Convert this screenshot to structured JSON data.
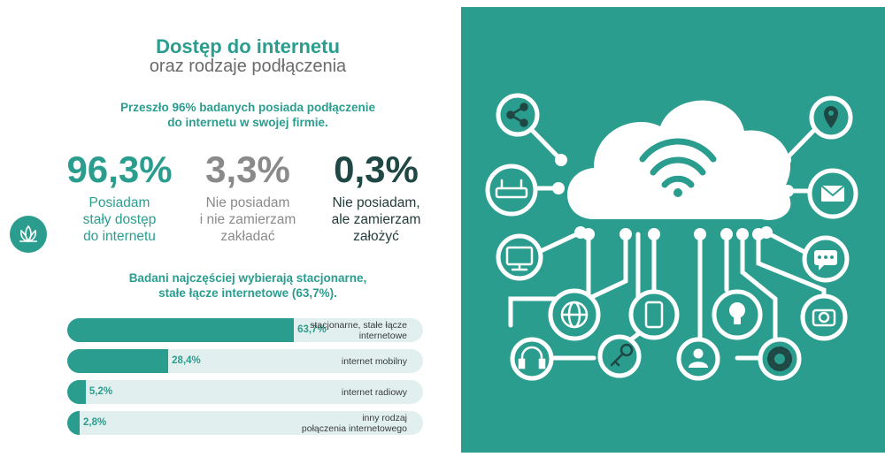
{
  "title": "Dostęp do internetu",
  "subtitle": "oraz rodzaje podłączenia",
  "intro": "Przeszło 96% badanych posiada podłączenie\ndo internetu w swojej firmie.",
  "stats": [
    {
      "value": "96,3%",
      "label": "Posiadam\nstały dostęp\ndo internetu"
    },
    {
      "value": "3,3%",
      "label": "Nie posiadam\ni nie zamierzam\nzakładać"
    },
    {
      "value": "0,3%",
      "label": "Nie posiadam,\nale zamierzam\nzałożyć"
    }
  ],
  "chart_intro": "Badani najczęściej wybierają stacjonarne,\nstałe łącze internetowe (63,7%).",
  "colors": {
    "accent": "#2a9d8f",
    "track": "#e1f0ef",
    "dark": "#1f4744",
    "gray": "#8a8a8a"
  },
  "icons": [
    "share-icon",
    "router-icon",
    "monitor-icon",
    "globe-icon",
    "headphones-icon",
    "key-icon",
    "phone-icon",
    "lightbulb-icon",
    "user-icon",
    "gear-icon",
    "camera-icon",
    "chat-icon",
    "mail-icon",
    "location-pin-icon",
    "wifi-icon",
    "cloud-icon"
  ],
  "chart_data": {
    "type": "bar",
    "orientation": "horizontal",
    "categories": [
      "stacjonarne, stałe łącze\ninternetowe",
      "internet mobilny",
      "internet radiowy",
      "inny rodzaj\npołączenia internetowego"
    ],
    "values": [
      63.7,
      28.4,
      5.2,
      2.8
    ],
    "value_labels": [
      "63,7%",
      "28,4%",
      "5,2%",
      "2,8%"
    ],
    "xlim": [
      0,
      100
    ],
    "title": "",
    "xlabel": "",
    "ylabel": ""
  }
}
